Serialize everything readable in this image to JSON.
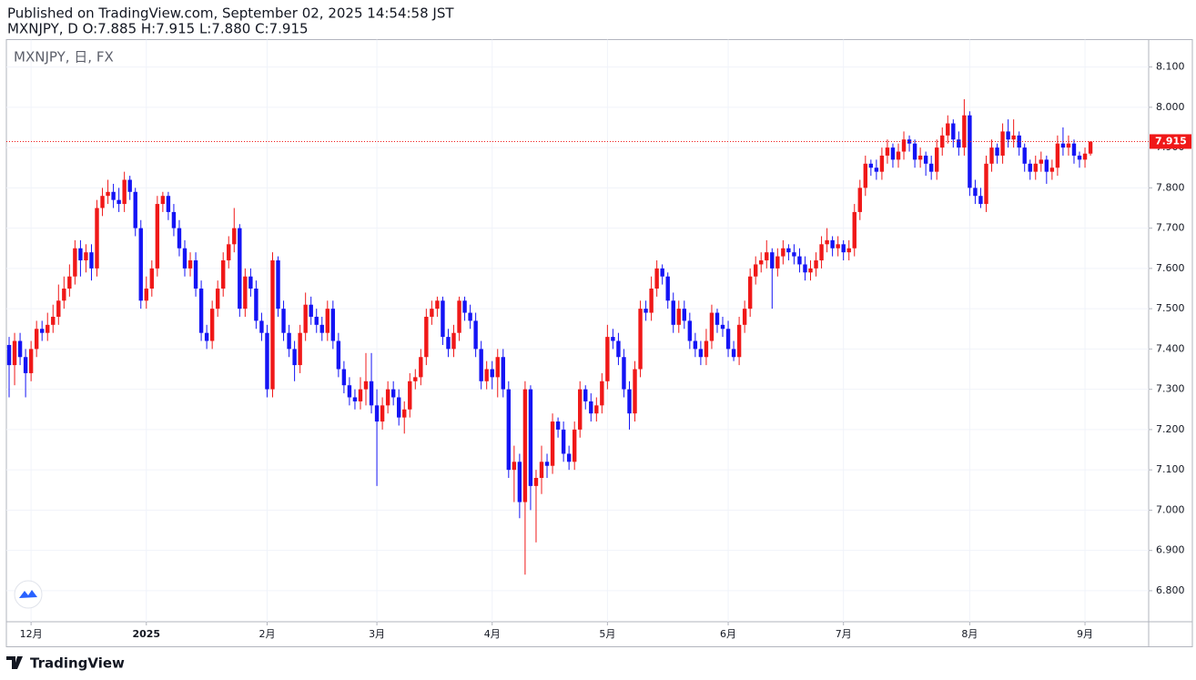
{
  "chart_data": {
    "type": "candlestick",
    "published": "Published on TradingView.com, September 02, 2025 14:54:58 JST",
    "ohlc_header": "MXNJPY, D O:7.885 H:7.915 L:7.880 C:7.915",
    "symbol_label": "MXNJPY, 日, FX",
    "brand": "TradingView",
    "up_color": "#f01818",
    "down_color": "#1414f5",
    "grid": true,
    "ylim": [
      6.723,
      8.168
    ],
    "yticks": [
      {
        "value": 6.8,
        "label": "6.800"
      },
      {
        "value": 6.9,
        "label": "6.900"
      },
      {
        "value": 7.0,
        "label": "7.000"
      },
      {
        "value": 7.1,
        "label": "7.100"
      },
      {
        "value": 7.2,
        "label": "7.200"
      },
      {
        "value": 7.3,
        "label": "7.300"
      },
      {
        "value": 7.4,
        "label": "7.400"
      },
      {
        "value": 7.5,
        "label": "7.500"
      },
      {
        "value": 7.6,
        "label": "7.600"
      },
      {
        "value": 7.7,
        "label": "7.700"
      },
      {
        "value": 7.8,
        "label": "7.800"
      },
      {
        "value": 7.9,
        "label": "7.900"
      },
      {
        "value": 8.0,
        "label": "8.000"
      },
      {
        "value": 8.1,
        "label": "8.100"
      }
    ],
    "xlim": [
      -0.5,
      207.6
    ],
    "xticks": [
      {
        "value": 4,
        "label": "12月"
      },
      {
        "value": 25,
        "label": "2025"
      },
      {
        "value": 47,
        "label": "2月"
      },
      {
        "value": 67,
        "label": "3月"
      },
      {
        "value": 88,
        "label": "4月"
      },
      {
        "value": 109,
        "label": "5月"
      },
      {
        "value": 131,
        "label": "6月"
      },
      {
        "value": 152,
        "label": "7月"
      },
      {
        "value": 175,
        "label": "8月"
      },
      {
        "value": 196,
        "label": "9月"
      }
    ],
    "last_price": {
      "value": 7.915,
      "label": "7.915"
    },
    "candles": [
      [
        7.41,
        7.43,
        7.28,
        7.36
      ],
      [
        7.36,
        7.44,
        7.31,
        7.42
      ],
      [
        7.42,
        7.44,
        7.36,
        7.38
      ],
      [
        7.38,
        7.4,
        7.28,
        7.34
      ],
      [
        7.34,
        7.42,
        7.32,
        7.4
      ],
      [
        7.4,
        7.47,
        7.38,
        7.45
      ],
      [
        7.45,
        7.47,
        7.42,
        7.44
      ],
      [
        7.44,
        7.49,
        7.42,
        7.46
      ],
      [
        7.46,
        7.51,
        7.44,
        7.48
      ],
      [
        7.48,
        7.56,
        7.46,
        7.52
      ],
      [
        7.52,
        7.58,
        7.5,
        7.55
      ],
      [
        7.55,
        7.61,
        7.53,
        7.58
      ],
      [
        7.58,
        7.67,
        7.56,
        7.65
      ],
      [
        7.65,
        7.67,
        7.58,
        7.62
      ],
      [
        7.62,
        7.66,
        7.59,
        7.64
      ],
      [
        7.64,
        7.66,
        7.57,
        7.6
      ],
      [
        7.6,
        7.77,
        7.58,
        7.75
      ],
      [
        7.75,
        7.8,
        7.73,
        7.78
      ],
      [
        7.78,
        7.82,
        7.76,
        7.79
      ],
      [
        7.79,
        7.81,
        7.75,
        7.77
      ],
      [
        7.77,
        7.8,
        7.74,
        7.76
      ],
      [
        7.76,
        7.84,
        7.74,
        7.82
      ],
      [
        7.82,
        7.83,
        7.77,
        7.79
      ],
      [
        7.79,
        7.8,
        7.68,
        7.7
      ],
      [
        7.7,
        7.72,
        7.5,
        7.52
      ],
      [
        7.52,
        7.58,
        7.5,
        7.55
      ],
      [
        7.55,
        7.62,
        7.53,
        7.6
      ],
      [
        7.6,
        7.78,
        7.58,
        7.76
      ],
      [
        7.76,
        7.79,
        7.74,
        7.78
      ],
      [
        7.78,
        7.79,
        7.72,
        7.74
      ],
      [
        7.74,
        7.76,
        7.68,
        7.7
      ],
      [
        7.7,
        7.72,
        7.63,
        7.65
      ],
      [
        7.65,
        7.67,
        7.58,
        7.6
      ],
      [
        7.6,
        7.64,
        7.58,
        7.62
      ],
      [
        7.62,
        7.64,
        7.53,
        7.55
      ],
      [
        7.55,
        7.57,
        7.42,
        7.44
      ],
      [
        7.44,
        7.46,
        7.4,
        7.42
      ],
      [
        7.42,
        7.52,
        7.4,
        7.5
      ],
      [
        7.5,
        7.57,
        7.48,
        7.55
      ],
      [
        7.55,
        7.64,
        7.53,
        7.62
      ],
      [
        7.62,
        7.68,
        7.6,
        7.66
      ],
      [
        7.66,
        7.75,
        7.64,
        7.7
      ],
      [
        7.7,
        7.71,
        7.48,
        7.5
      ],
      [
        7.5,
        7.6,
        7.48,
        7.58
      ],
      [
        7.58,
        7.6,
        7.53,
        7.55
      ],
      [
        7.55,
        7.57,
        7.45,
        7.47
      ],
      [
        7.47,
        7.49,
        7.42,
        7.44
      ],
      [
        7.44,
        7.46,
        7.28,
        7.3
      ],
      [
        7.3,
        7.64,
        7.28,
        7.62
      ],
      [
        7.62,
        7.63,
        7.48,
        7.5
      ],
      [
        7.5,
        7.52,
        7.42,
        7.44
      ],
      [
        7.44,
        7.46,
        7.38,
        7.4
      ],
      [
        7.4,
        7.42,
        7.32,
        7.36
      ],
      [
        7.36,
        7.46,
        7.34,
        7.44
      ],
      [
        7.44,
        7.54,
        7.42,
        7.51
      ],
      [
        7.51,
        7.53,
        7.46,
        7.48
      ],
      [
        7.48,
        7.5,
        7.44,
        7.46
      ],
      [
        7.46,
        7.48,
        7.42,
        7.44
      ],
      [
        7.44,
        7.52,
        7.42,
        7.5
      ],
      [
        7.5,
        7.52,
        7.4,
        7.42
      ],
      [
        7.42,
        7.44,
        7.33,
        7.35
      ],
      [
        7.35,
        7.37,
        7.29,
        7.31
      ],
      [
        7.31,
        7.33,
        7.26,
        7.28
      ],
      [
        7.28,
        7.3,
        7.25,
        7.27
      ],
      [
        7.27,
        7.33,
        7.25,
        7.3
      ],
      [
        7.3,
        7.39,
        7.26,
        7.32
      ],
      [
        7.32,
        7.39,
        7.24,
        7.26
      ],
      [
        7.26,
        7.3,
        7.06,
        7.22
      ],
      [
        7.22,
        7.28,
        7.2,
        7.26
      ],
      [
        7.26,
        7.32,
        7.24,
        7.3
      ],
      [
        7.3,
        7.32,
        7.26,
        7.28
      ],
      [
        7.28,
        7.3,
        7.21,
        7.23
      ],
      [
        7.23,
        7.27,
        7.19,
        7.25
      ],
      [
        7.25,
        7.34,
        7.23,
        7.32
      ],
      [
        7.32,
        7.35,
        7.3,
        7.33
      ],
      [
        7.33,
        7.4,
        7.31,
        7.38
      ],
      [
        7.38,
        7.5,
        7.36,
        7.48
      ],
      [
        7.48,
        7.52,
        7.46,
        7.5
      ],
      [
        7.5,
        7.53,
        7.48,
        7.52
      ],
      [
        7.52,
        7.53,
        7.41,
        7.43
      ],
      [
        7.43,
        7.45,
        7.38,
        7.4
      ],
      [
        7.4,
        7.46,
        7.38,
        7.44
      ],
      [
        7.44,
        7.53,
        7.42,
        7.52
      ],
      [
        7.52,
        7.53,
        7.47,
        7.49
      ],
      [
        7.49,
        7.51,
        7.45,
        7.47
      ],
      [
        7.47,
        7.49,
        7.38,
        7.4
      ],
      [
        7.4,
        7.42,
        7.3,
        7.32
      ],
      [
        7.32,
        7.37,
        7.3,
        7.35
      ],
      [
        7.35,
        7.37,
        7.3,
        7.33
      ],
      [
        7.33,
        7.4,
        7.28,
        7.38
      ],
      [
        7.38,
        7.4,
        7.28,
        7.3
      ],
      [
        7.3,
        7.32,
        7.08,
        7.1
      ],
      [
        7.1,
        7.16,
        7.02,
        7.12
      ],
      [
        7.12,
        7.14,
        6.98,
        7.02
      ],
      [
        7.02,
        7.32,
        6.84,
        7.3
      ],
      [
        7.3,
        7.31,
        7.0,
        7.06
      ],
      [
        7.06,
        7.1,
        6.92,
        7.08
      ],
      [
        7.08,
        7.16,
        7.04,
        7.12
      ],
      [
        7.12,
        7.14,
        7.08,
        7.11
      ],
      [
        7.11,
        7.24,
        7.09,
        7.22
      ],
      [
        7.22,
        7.23,
        7.18,
        7.2
      ],
      [
        7.2,
        7.22,
        7.12,
        7.14
      ],
      [
        7.14,
        7.16,
        7.1,
        7.12
      ],
      [
        7.12,
        7.22,
        7.1,
        7.2
      ],
      [
        7.2,
        7.32,
        7.18,
        7.3
      ],
      [
        7.3,
        7.31,
        7.25,
        7.27
      ],
      [
        7.27,
        7.29,
        7.22,
        7.24
      ],
      [
        7.24,
        7.28,
        7.22,
        7.26
      ],
      [
        7.26,
        7.34,
        7.24,
        7.32
      ],
      [
        7.32,
        7.46,
        7.3,
        7.43
      ],
      [
        7.43,
        7.45,
        7.4,
        7.42
      ],
      [
        7.42,
        7.44,
        7.36,
        7.38
      ],
      [
        7.38,
        7.4,
        7.28,
        7.3
      ],
      [
        7.3,
        7.32,
        7.2,
        7.24
      ],
      [
        7.24,
        7.37,
        7.22,
        7.35
      ],
      [
        7.35,
        7.52,
        7.33,
        7.5
      ],
      [
        7.5,
        7.52,
        7.47,
        7.49
      ],
      [
        7.49,
        7.58,
        7.47,
        7.55
      ],
      [
        7.55,
        7.62,
        7.53,
        7.6
      ],
      [
        7.6,
        7.61,
        7.56,
        7.58
      ],
      [
        7.58,
        7.59,
        7.5,
        7.52
      ],
      [
        7.52,
        7.54,
        7.44,
        7.46
      ],
      [
        7.46,
        7.52,
        7.44,
        7.5
      ],
      [
        7.5,
        7.52,
        7.45,
        7.47
      ],
      [
        7.47,
        7.49,
        7.4,
        7.42
      ],
      [
        7.42,
        7.44,
        7.38,
        7.4
      ],
      [
        7.4,
        7.42,
        7.36,
        7.38
      ],
      [
        7.38,
        7.45,
        7.36,
        7.42
      ],
      [
        7.42,
        7.51,
        7.4,
        7.49
      ],
      [
        7.49,
        7.5,
        7.44,
        7.46
      ],
      [
        7.46,
        7.48,
        7.43,
        7.45
      ],
      [
        7.45,
        7.47,
        7.38,
        7.4
      ],
      [
        7.4,
        7.42,
        7.37,
        7.38
      ],
      [
        7.38,
        7.48,
        7.36,
        7.46
      ],
      [
        7.46,
        7.52,
        7.44,
        7.5
      ],
      [
        7.5,
        7.6,
        7.48,
        7.58
      ],
      [
        7.58,
        7.63,
        7.56,
        7.61
      ],
      [
        7.61,
        7.64,
        7.59,
        7.62
      ],
      [
        7.62,
        7.67,
        7.6,
        7.64
      ],
      [
        7.64,
        7.65,
        7.5,
        7.6
      ],
      [
        7.6,
        7.65,
        7.58,
        7.63
      ],
      [
        7.63,
        7.67,
        7.61,
        7.65
      ],
      [
        7.65,
        7.66,
        7.62,
        7.64
      ],
      [
        7.64,
        7.66,
        7.61,
        7.63
      ],
      [
        7.63,
        7.65,
        7.59,
        7.61
      ],
      [
        7.61,
        7.63,
        7.57,
        7.59
      ],
      [
        7.59,
        7.62,
        7.57,
        7.6
      ],
      [
        7.6,
        7.64,
        7.58,
        7.62
      ],
      [
        7.62,
        7.68,
        7.6,
        7.66
      ],
      [
        7.66,
        7.7,
        7.64,
        7.67
      ],
      [
        7.67,
        7.68,
        7.63,
        7.65
      ],
      [
        7.65,
        7.68,
        7.63,
        7.66
      ],
      [
        7.66,
        7.67,
        7.62,
        7.64
      ],
      [
        7.64,
        7.67,
        7.62,
        7.65
      ],
      [
        7.65,
        7.76,
        7.63,
        7.74
      ],
      [
        7.74,
        7.82,
        7.72,
        7.8
      ],
      [
        7.8,
        7.88,
        7.78,
        7.86
      ],
      [
        7.86,
        7.87,
        7.83,
        7.85
      ],
      [
        7.85,
        7.87,
        7.82,
        7.84
      ],
      [
        7.84,
        7.9,
        7.82,
        7.88
      ],
      [
        7.88,
        7.92,
        7.86,
        7.9
      ],
      [
        7.9,
        7.91,
        7.85,
        7.87
      ],
      [
        7.87,
        7.91,
        7.85,
        7.89
      ],
      [
        7.89,
        7.94,
        7.87,
        7.92
      ],
      [
        7.92,
        7.93,
        7.89,
        7.91
      ],
      [
        7.91,
        7.92,
        7.85,
        7.87
      ],
      [
        7.87,
        7.9,
        7.85,
        7.88
      ],
      [
        7.88,
        7.89,
        7.83,
        7.86
      ],
      [
        7.86,
        7.88,
        7.82,
        7.84
      ],
      [
        7.84,
        7.92,
        7.82,
        7.9
      ],
      [
        7.9,
        7.95,
        7.88,
        7.93
      ],
      [
        7.93,
        7.98,
        7.91,
        7.96
      ],
      [
        7.96,
        7.97,
        7.9,
        7.92
      ],
      [
        7.92,
        7.94,
        7.88,
        7.9
      ],
      [
        7.9,
        8.02,
        7.88,
        7.98
      ],
      [
        7.98,
        7.99,
        7.78,
        7.8
      ],
      [
        7.8,
        7.82,
        7.76,
        7.78
      ],
      [
        7.78,
        7.8,
        7.75,
        7.76
      ],
      [
        7.76,
        7.88,
        7.74,
        7.86
      ],
      [
        7.86,
        7.92,
        7.84,
        7.9
      ],
      [
        7.9,
        7.91,
        7.86,
        7.88
      ],
      [
        7.88,
        7.96,
        7.86,
        7.94
      ],
      [
        7.94,
        7.97,
        7.9,
        7.92
      ],
      [
        7.92,
        7.97,
        7.9,
        7.93
      ],
      [
        7.93,
        7.94,
        7.88,
        7.9
      ],
      [
        7.9,
        7.91,
        7.84,
        7.86
      ],
      [
        7.86,
        7.87,
        7.82,
        7.84
      ],
      [
        7.84,
        7.88,
        7.82,
        7.86
      ],
      [
        7.86,
        7.89,
        7.84,
        7.87
      ],
      [
        7.87,
        7.88,
        7.81,
        7.84
      ],
      [
        7.84,
        7.87,
        7.82,
        7.85
      ],
      [
        7.85,
        7.93,
        7.83,
        7.91
      ],
      [
        7.91,
        7.95,
        7.88,
        7.9
      ],
      [
        7.9,
        7.93,
        7.88,
        7.91
      ],
      [
        7.91,
        7.92,
        7.86,
        7.88
      ],
      [
        7.88,
        7.89,
        7.85,
        7.87
      ],
      [
        7.87,
        7.9,
        7.85,
        7.885
      ],
      [
        7.885,
        7.915,
        7.88,
        7.915
      ]
    ]
  }
}
